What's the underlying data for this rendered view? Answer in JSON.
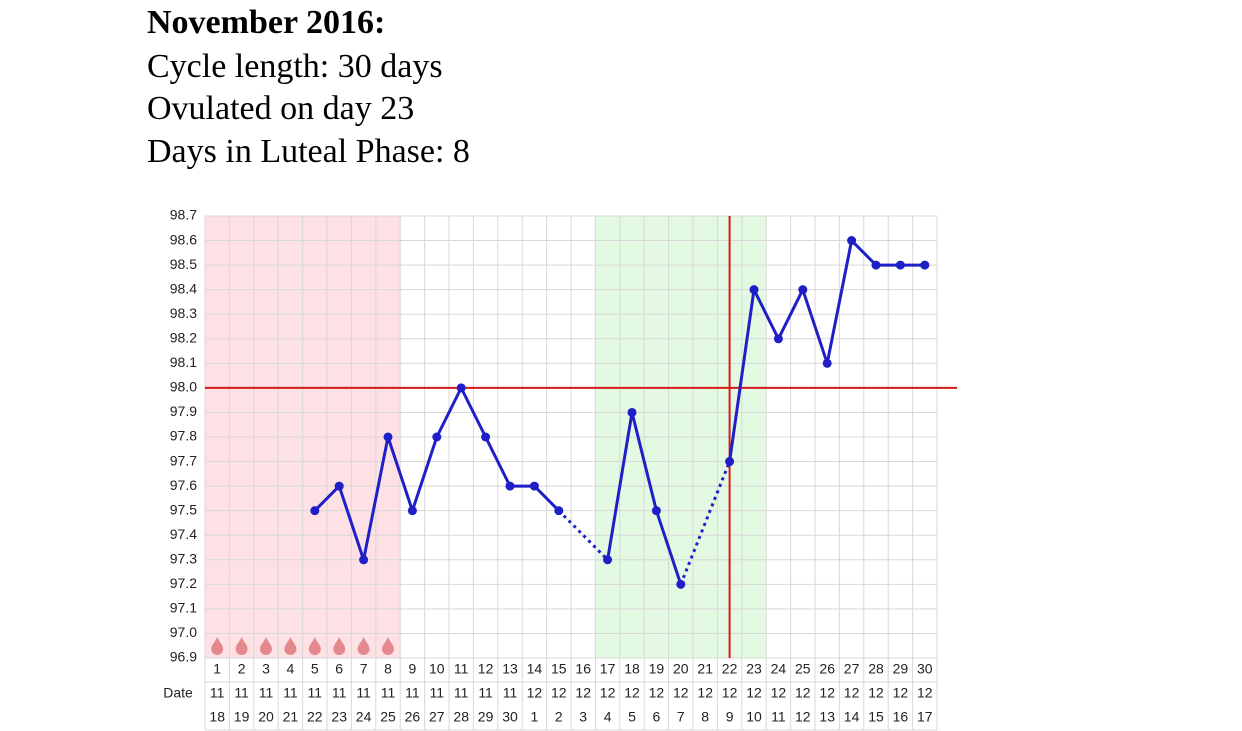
{
  "header": {
    "title": "November 2016:",
    "lines": [
      "Cycle length: 30 days",
      "Ovulated on day 23",
      "Days in Luteal Phase: 8"
    ]
  },
  "chart_data": {
    "type": "line",
    "categories": [
      "1",
      "2",
      "3",
      "4",
      "5",
      "6",
      "7",
      "8",
      "9",
      "10",
      "11",
      "12",
      "13",
      "14",
      "15",
      "16",
      "17",
      "18",
      "19",
      "20",
      "21",
      "22",
      "23",
      "24",
      "25",
      "26",
      "27",
      "28",
      "29",
      "30"
    ],
    "series": [
      {
        "color": "#1f1fc8",
        "values": [
          null,
          null,
          null,
          null,
          97.5,
          97.6,
          97.3,
          97.8,
          97.5,
          97.8,
          98.0,
          97.8,
          97.6,
          97.6,
          97.5,
          null,
          97.3,
          97.9,
          97.5,
          97.2,
          null,
          97.7,
          98.4,
          98.2,
          98.4,
          98.1,
          98.6,
          98.5,
          98.5,
          98.5
        ]
      }
    ],
    "ylim": [
      96.9,
      98.7
    ],
    "yticks": [
      96.9,
      {
        "value": 97,
        "label": "97.0"
      },
      97.1,
      97.2,
      97.3,
      97.4,
      97.5,
      97.6,
      97.7,
      97.8,
      97.9,
      {
        "value": 98,
        "label": "98.0"
      },
      98.1,
      98.2,
      98.3,
      98.4,
      98.5,
      98.6,
      98.7
    ],
    "grid": true,
    "coverline": {
      "value": 98.0,
      "color": "#d61a1a"
    },
    "ovulation_line": {
      "day": 22,
      "color": "#d61a1a"
    },
    "shading": [
      {
        "from": 1,
        "to": 8,
        "color": "#fde1e4"
      },
      {
        "from": 17,
        "to": 23,
        "color": "#e3f9e1"
      }
    ],
    "date_row": {
      "label": "Date",
      "month": [
        "11",
        "11",
        "11",
        "11",
        "11",
        "11",
        "11",
        "11",
        "11",
        "11",
        "11",
        "11",
        "11",
        "12",
        "12",
        "12",
        "12",
        "12",
        "12",
        "12",
        "12",
        "12",
        "12",
        "12",
        "12",
        "12",
        "12",
        "12",
        "12",
        "12"
      ],
      "day": [
        "18",
        "19",
        "20",
        "21",
        "22",
        "23",
        "24",
        "25",
        "26",
        "27",
        "28",
        "29",
        "30",
        "1",
        "2",
        "3",
        "4",
        "5",
        "6",
        "7",
        "8",
        "9",
        "10",
        "11",
        "12",
        "13",
        "14",
        "15",
        "16",
        "17"
      ]
    }
  }
}
